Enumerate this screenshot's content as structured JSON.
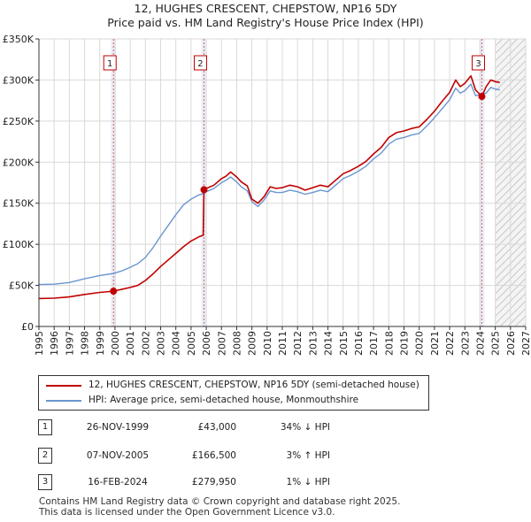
{
  "header": {
    "title": "12, HUGHES CRESCENT, CHEPSTOW, NP16 5DY",
    "subtitle": "Price paid vs. HM Land Registry's House Price Index (HPI)"
  },
  "chart_data": {
    "type": "line",
    "title": "12, HUGHES CRESCENT, CHEPSTOW, NP16 5DY",
    "subtitle": "Price paid vs. HM Land Registry's House Price Index (HPI)",
    "xlabel": "",
    "ylabel": "",
    "xlim": [
      1995,
      2027
    ],
    "ylim": [
      0,
      350000
    ],
    "grid": true,
    "x_ticks": [
      "1995",
      "1996",
      "1997",
      "1998",
      "1999",
      "2000",
      "2001",
      "2002",
      "2003",
      "2004",
      "2005",
      "2006",
      "2007",
      "2008",
      "2009",
      "2010",
      "2011",
      "2012",
      "2013",
      "2014",
      "2015",
      "2016",
      "2017",
      "2018",
      "2019",
      "2020",
      "2021",
      "2022",
      "2023",
      "2024",
      "2025",
      "2026",
      "2027"
    ],
    "y_ticks": [
      {
        "value": 0,
        "label": "£0"
      },
      {
        "value": 50000,
        "label": "£50K"
      },
      {
        "value": 100000,
        "label": "£100K"
      },
      {
        "value": 150000,
        "label": "£150K"
      },
      {
        "value": 200000,
        "label": "£200K"
      },
      {
        "value": 250000,
        "label": "£250K"
      },
      {
        "value": 300000,
        "label": "£300K"
      },
      {
        "value": 350000,
        "label": "£350K"
      }
    ],
    "series": [
      {
        "name": "12, HUGHES CRESCENT, CHEPSTOW, NP16 5DY (semi-detached house)",
        "color": "#c00000",
        "points": [
          [
            1995.0,
            34000
          ],
          [
            1996.0,
            34500
          ],
          [
            1997.0,
            36000
          ],
          [
            1998.0,
            39000
          ],
          [
            1999.0,
            41500
          ],
          [
            1999.9,
            43000
          ],
          [
            2000.5,
            45500
          ],
          [
            2001.0,
            47500
          ],
          [
            2001.5,
            50000
          ],
          [
            2002.0,
            56000
          ],
          [
            2002.5,
            64000
          ],
          [
            2003.0,
            73000
          ],
          [
            2003.5,
            81000
          ],
          [
            2004.0,
            89000
          ],
          [
            2004.5,
            97000
          ],
          [
            2005.0,
            104000
          ],
          [
            2005.5,
            109000
          ],
          [
            2005.8,
            111000
          ],
          [
            2005.85,
            166500
          ],
          [
            2006.0,
            168000
          ],
          [
            2006.5,
            172000
          ],
          [
            2007.0,
            180000
          ],
          [
            2007.3,
            183000
          ],
          [
            2007.6,
            188000
          ],
          [
            2008.0,
            182000
          ],
          [
            2008.3,
            176000
          ],
          [
            2008.7,
            171000
          ],
          [
            2009.0,
            155000
          ],
          [
            2009.4,
            150000
          ],
          [
            2009.8,
            158000
          ],
          [
            2010.2,
            170000
          ],
          [
            2010.6,
            168000
          ],
          [
            2011.0,
            169000
          ],
          [
            2011.5,
            172000
          ],
          [
            2012.0,
            170000
          ],
          [
            2012.5,
            166000
          ],
          [
            2013.0,
            169000
          ],
          [
            2013.5,
            172000
          ],
          [
            2014.0,
            170000
          ],
          [
            2014.5,
            178000
          ],
          [
            2015.0,
            186000
          ],
          [
            2015.5,
            190000
          ],
          [
            2016.0,
            195000
          ],
          [
            2016.5,
            201000
          ],
          [
            2017.0,
            210000
          ],
          [
            2017.5,
            218000
          ],
          [
            2018.0,
            230000
          ],
          [
            2018.5,
            236000
          ],
          [
            2019.0,
            238000
          ],
          [
            2019.5,
            241000
          ],
          [
            2020.0,
            243000
          ],
          [
            2020.5,
            252000
          ],
          [
            2021.0,
            262000
          ],
          [
            2021.5,
            274000
          ],
          [
            2022.0,
            285000
          ],
          [
            2022.4,
            300000
          ],
          [
            2022.7,
            292000
          ],
          [
            2023.0,
            296000
          ],
          [
            2023.4,
            305000
          ],
          [
            2023.7,
            288000
          ],
          [
            2024.12,
            279950
          ],
          [
            2024.4,
            292000
          ],
          [
            2024.7,
            300000
          ],
          [
            2025.0,
            298000
          ],
          [
            2025.3,
            297000
          ]
        ]
      },
      {
        "name": "HPI: Average price, semi-detached house, Monmouthshire",
        "color": "#6a96d0",
        "points": [
          [
            1995.0,
            51000
          ],
          [
            1996.0,
            51500
          ],
          [
            1997.0,
            53500
          ],
          [
            1998.0,
            58000
          ],
          [
            1999.0,
            62000
          ],
          [
            1999.9,
            64500
          ],
          [
            2000.5,
            68000
          ],
          [
            2001.0,
            72000
          ],
          [
            2001.5,
            76500
          ],
          [
            2002.0,
            84000
          ],
          [
            2002.5,
            96000
          ],
          [
            2003.0,
            110000
          ],
          [
            2003.5,
            123000
          ],
          [
            2004.0,
            136000
          ],
          [
            2004.5,
            148000
          ],
          [
            2005.0,
            155000
          ],
          [
            2005.5,
            160000
          ],
          [
            2005.85,
            162000
          ],
          [
            2006.0,
            164000
          ],
          [
            2006.5,
            168000
          ],
          [
            2007.0,
            175000
          ],
          [
            2007.3,
            178000
          ],
          [
            2007.6,
            182000
          ],
          [
            2008.0,
            176000
          ],
          [
            2008.3,
            170000
          ],
          [
            2008.7,
            165000
          ],
          [
            2009.0,
            152000
          ],
          [
            2009.4,
            146000
          ],
          [
            2009.8,
            154000
          ],
          [
            2010.2,
            165000
          ],
          [
            2010.6,
            163000
          ],
          [
            2011.0,
            163000
          ],
          [
            2011.5,
            166000
          ],
          [
            2012.0,
            164000
          ],
          [
            2012.5,
            161000
          ],
          [
            2013.0,
            163000
          ],
          [
            2013.5,
            166000
          ],
          [
            2014.0,
            164000
          ],
          [
            2014.5,
            172000
          ],
          [
            2015.0,
            180000
          ],
          [
            2015.5,
            184000
          ],
          [
            2016.0,
            189000
          ],
          [
            2016.5,
            195000
          ],
          [
            2017.0,
            204000
          ],
          [
            2017.5,
            211000
          ],
          [
            2018.0,
            222000
          ],
          [
            2018.5,
            228000
          ],
          [
            2019.0,
            230000
          ],
          [
            2019.5,
            233000
          ],
          [
            2020.0,
            235000
          ],
          [
            2020.5,
            244000
          ],
          [
            2021.0,
            254000
          ],
          [
            2021.5,
            265000
          ],
          [
            2022.0,
            276000
          ],
          [
            2022.4,
            290000
          ],
          [
            2022.7,
            284000
          ],
          [
            2023.0,
            287000
          ],
          [
            2023.4,
            295000
          ],
          [
            2023.7,
            281000
          ],
          [
            2024.12,
            282800
          ],
          [
            2024.4,
            284000
          ],
          [
            2024.7,
            291000
          ],
          [
            2025.0,
            289000
          ],
          [
            2025.3,
            288000
          ]
        ]
      }
    ],
    "transactions": [
      {
        "label": "1",
        "date": "26-NOV-1999",
        "x": 1999.9,
        "price_value": 43000,
        "price": "£43,000",
        "hpi": "34% ↓ HPI"
      },
      {
        "label": "2",
        "date": "07-NOV-2005",
        "x": 2005.85,
        "price_value": 166500,
        "price": "£166,500",
        "hpi": "3% ↑ HPI"
      },
      {
        "label": "3",
        "date": "16-FEB-2024",
        "x": 2024.12,
        "price_value": 279950,
        "price": "£279,950",
        "hpi": "1% ↓ HPI"
      }
    ],
    "future_shading_from": 2025.0,
    "legend_position": "below"
  },
  "legend": {
    "items": [
      {
        "label": "12, HUGHES CRESCENT, CHEPSTOW, NP16 5DY (semi-detached house)",
        "color": "#c00000"
      },
      {
        "label": "HPI: Average price, semi-detached house, Monmouthshire",
        "color": "#6a96d0"
      }
    ]
  },
  "footer": {
    "line1": "Contains HM Land Registry data © Crown copyright and database right 2025.",
    "line2": "This data is licensed under the Open Government Licence v3.0."
  },
  "colors": {
    "price_line": "#c00000",
    "hpi_line": "#6a96d0",
    "grid": "#d9d9d9",
    "marker_band": "#e8eef8"
  }
}
